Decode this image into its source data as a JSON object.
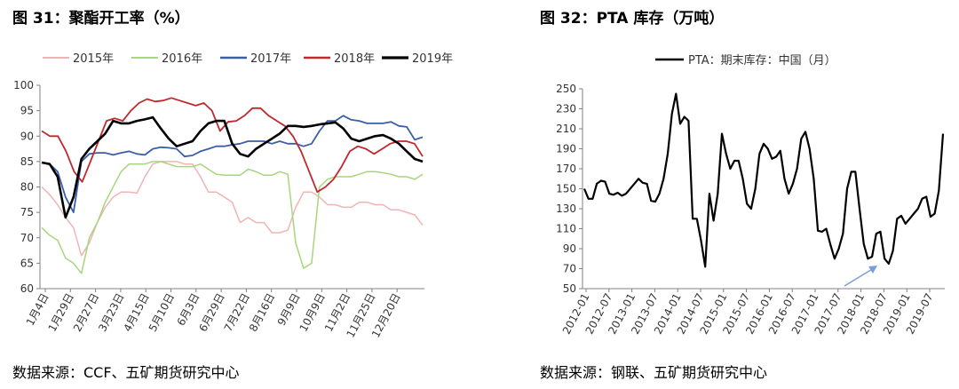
{
  "left": {
    "title": "图 31：聚酯开工率（%）",
    "source": "数据来源：CCF、五矿期货研究中心"
  },
  "right": {
    "title": "图 32：PTA 库存（万吨）",
    "source": "数据来源：钢联、五矿期货研究中心"
  },
  "chart_data": [
    {
      "type": "line",
      "title": "",
      "ylim": [
        60,
        100
      ],
      "yticks": [
        60,
        65,
        70,
        75,
        80,
        85,
        90,
        95,
        100
      ],
      "x_tick_labels": [
        "1月4日",
        "1月29日",
        "2月27日",
        "3月23日",
        "4月15日",
        "5月10日",
        "6月3日",
        "6月29日",
        "7月22日",
        "8月16日",
        "9月9日",
        "10月9日",
        "11月2日",
        "11月25日",
        "12月20日"
      ],
      "legend_position": "top",
      "series": [
        {
          "name": "2015年",
          "color": "#f0b4b4",
          "width": 1.5,
          "values": [
            80,
            78.5,
            76.5,
            74,
            72,
            66.5,
            69,
            73,
            76,
            78,
            79,
            79,
            78.8,
            82,
            84.5,
            85,
            85,
            85,
            84.5,
            84.5,
            82,
            79,
            79,
            78,
            77,
            73,
            74,
            73,
            73,
            71,
            71,
            71.5,
            76,
            79,
            79,
            78,
            76.5,
            76.5,
            76,
            76,
            77,
            77,
            76.5,
            76.5,
            75.5,
            75.5,
            75,
            74.5,
            72.5
          ]
        },
        {
          "name": "2016年",
          "color": "#a6d67e",
          "width": 1.5,
          "values": [
            72,
            70.5,
            69.5,
            66,
            65,
            63,
            70,
            73,
            77,
            80,
            83,
            84.5,
            84.5,
            84.5,
            85,
            85,
            84.5,
            84,
            84,
            84,
            84.5,
            83.5,
            82.5,
            82.3,
            82.3,
            82.3,
            83.5,
            83,
            82.3,
            82.3,
            83,
            82.5,
            69,
            64,
            65,
            80,
            81.5,
            82,
            82,
            82,
            82.5,
            83,
            83,
            82.8,
            82.5,
            82,
            82,
            81.5,
            82.5
          ]
        },
        {
          "name": "2017年",
          "color": "#3a5ea8",
          "width": 1.8,
          "values": [
            84.8,
            84.5,
            83,
            78,
            75,
            85,
            86.5,
            86.7,
            86.7,
            86.3,
            86.7,
            87,
            86.5,
            86.3,
            87.5,
            87.8,
            87.7,
            87.5,
            86,
            86.2,
            87,
            87.5,
            88,
            88,
            88.3,
            88.5,
            89,
            89,
            89,
            88.5,
            89,
            88.5,
            88.5,
            88,
            88.5,
            91,
            93,
            93,
            94,
            93.2,
            93,
            92.5,
            92.5,
            92.5,
            92.8,
            92,
            91.8,
            89.3,
            89.8
          ]
        },
        {
          "name": "2018年",
          "color": "#c0282e",
          "width": 1.8,
          "values": [
            91,
            90,
            90,
            87,
            83,
            81,
            85,
            89,
            93,
            93.5,
            93,
            95,
            96.5,
            97.3,
            96.8,
            97,
            97.5,
            97,
            96.5,
            96,
            96.5,
            95,
            91,
            92.8,
            93,
            94,
            95.5,
            95.5,
            94,
            93,
            92,
            90,
            87,
            83,
            79,
            80,
            81.5,
            84,
            87,
            88,
            87.5,
            86.5,
            87.5,
            88.5,
            89,
            89,
            88.5,
            86
          ]
        },
        {
          "name": "2019年",
          "color": "#000000",
          "width": 2.6,
          "values": [
            84.8,
            84.5,
            82,
            74,
            78,
            85.5,
            87.5,
            89,
            90.5,
            93,
            92.5,
            92.5,
            93,
            93.3,
            93.7,
            91.5,
            89.5,
            88,
            88.5,
            89,
            91,
            92.5,
            93,
            93,
            88.5,
            86.5,
            86,
            87.5,
            88.5,
            89.5,
            90.5,
            92,
            92,
            91.8,
            92,
            92.3,
            92.5,
            92.7,
            91.5,
            89.5,
            89,
            89.5,
            90,
            90.2,
            89.5,
            88.5,
            87,
            85.5,
            85
          ]
        }
      ]
    },
    {
      "type": "line",
      "title": "",
      "ylim": [
        50,
        250
      ],
      "yticks": [
        50,
        70,
        90,
        110,
        130,
        150,
        170,
        190,
        210,
        230,
        250
      ],
      "x_tick_labels": [
        "2012-01",
        "2012-07",
        "2013-01",
        "2013-07",
        "2014-01",
        "2014-07",
        "2015-01",
        "2015-07",
        "2016-01",
        "2016-07",
        "2017-01",
        "2017-07",
        "2018-01",
        "2018-07",
        "2019-01",
        "2019-07"
      ],
      "legend_position": "top",
      "series": [
        {
          "name": "PTA：期末库存：中国（月）",
          "color": "#000000",
          "width": 2.2,
          "values": [
            150,
            140,
            140,
            155,
            158,
            157,
            145,
            144,
            146,
            143,
            145,
            150,
            155,
            160,
            156,
            155,
            138,
            137,
            145,
            160,
            185,
            225,
            245,
            215,
            222,
            218,
            120,
            120,
            98,
            72,
            145,
            118,
            145,
            205,
            185,
            170,
            178,
            178,
            160,
            135,
            130,
            150,
            185,
            195,
            190,
            180,
            182,
            188,
            160,
            145,
            155,
            170,
            200,
            207,
            190,
            160,
            108,
            107,
            110,
            94,
            80,
            90,
            105,
            150,
            167,
            167,
            130,
            95,
            80,
            82,
            105,
            107,
            80,
            75,
            88,
            120,
            123,
            115,
            120,
            125,
            130,
            140,
            142,
            122,
            125,
            148,
            205
          ]
        }
      ],
      "annotation": "arrow"
    }
  ]
}
